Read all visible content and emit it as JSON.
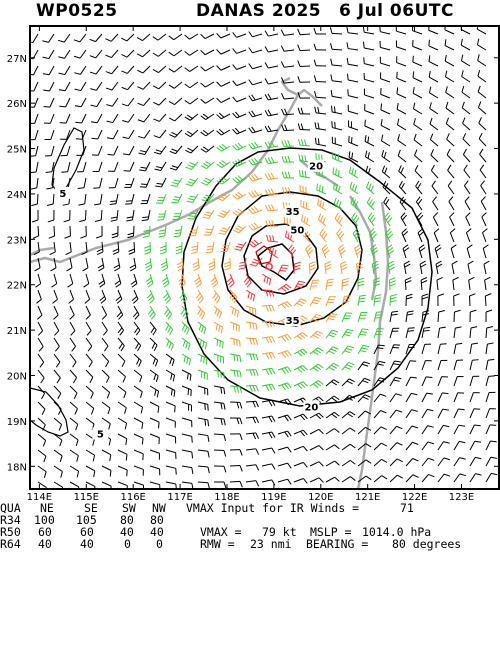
{
  "title": {
    "storm_id": "WP0525",
    "name_year": "DANAS 2025",
    "datetime": "6 Jul 06UTC"
  },
  "map": {
    "lat_ticks": [
      "18N",
      "19N",
      "20N",
      "21N",
      "22N",
      "23N",
      "24N",
      "25N",
      "26N",
      "27N"
    ],
    "lon_ticks": [
      "114E",
      "115E",
      "116E",
      "117E",
      "118E",
      "119E",
      "120E",
      "121E",
      "122E",
      "123E"
    ],
    "lon_range": [
      113.8,
      123.8
    ],
    "lat_range": [
      17.5,
      27.7
    ],
    "center": {
      "lon": 118.9,
      "lat": 22.4
    },
    "contour_labels": [
      {
        "text": "20",
        "lon": 119.9,
        "lat": 24.6
      },
      {
        "text": "35",
        "lon": 119.4,
        "lat": 23.6
      },
      {
        "text": "50",
        "lon": 119.5,
        "lat": 23.2
      },
      {
        "text": "35",
        "lon": 119.4,
        "lat": 21.2
      },
      {
        "text": "20",
        "lon": 119.8,
        "lat": 19.3
      },
      {
        "text": "5",
        "lon": 114.5,
        "lat": 24.0
      },
      {
        "text": "5",
        "lon": 115.3,
        "lat": 18.7
      }
    ],
    "colors": {
      "wind_34": "#33cc33",
      "wind_50": "#ff9933",
      "wind_64": "#ff3333",
      "land": "#aaaaaa"
    }
  },
  "table": {
    "header": [
      "QUA",
      "NE",
      "SE",
      "SW",
      "NW"
    ],
    "rows": [
      [
        "R34",
        "100",
        "105",
        "80",
        "80"
      ],
      [
        "R50",
        "60",
        "60",
        "40",
        "40"
      ],
      [
        "R64",
        "40",
        "40",
        "0",
        "0"
      ]
    ]
  },
  "stats": {
    "vmax_ir_label": "VMAX Input for IR Winds =",
    "vmax_ir_value": "71",
    "vmax_label": "VMAX =",
    "vmax_value": "79 kt",
    "mslp_label": "MSLP =",
    "mslp_value": "1014.0 hPa",
    "rmw_label": "RMW =",
    "rmw_value": "23 nmi",
    "bearing_label": "BEARING =",
    "bearing_value": "80 degrees"
  }
}
